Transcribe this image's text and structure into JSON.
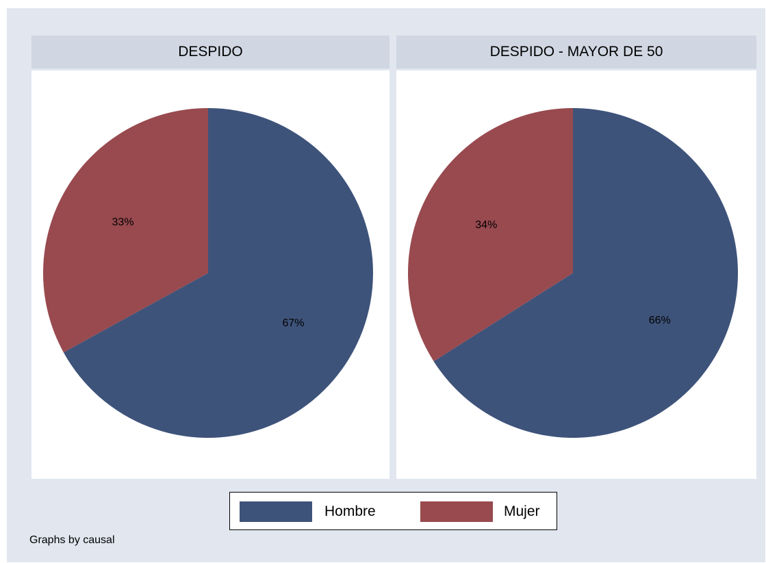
{
  "chart_data": [
    {
      "type": "pie",
      "title": "DESPIDO",
      "slices": [
        {
          "label": "Hombre",
          "value": 67,
          "display": "67%"
        },
        {
          "label": "Mujer",
          "value": 33,
          "display": "33%"
        }
      ]
    },
    {
      "type": "pie",
      "title": "DESPIDO - MAYOR DE 50",
      "slices": [
        {
          "label": "Hombre",
          "value": 66,
          "display": "66%"
        },
        {
          "label": "Mujer",
          "value": 34,
          "display": "34%"
        }
      ]
    }
  ],
  "legend": {
    "placement": "bottom",
    "items": [
      {
        "label": "Hombre",
        "color": "#3e537a"
      },
      {
        "label": "Mujer",
        "color": "#984a4f"
      }
    ]
  },
  "note": "Graphs by causal"
}
